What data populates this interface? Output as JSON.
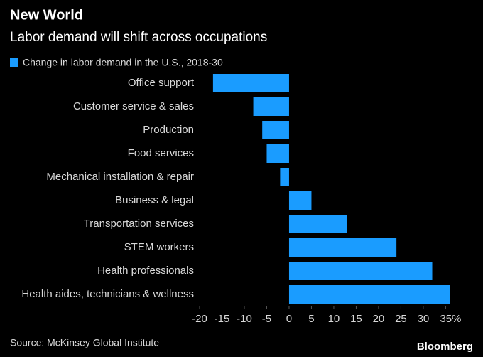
{
  "chart_data": {
    "type": "hbar",
    "title": "New World",
    "subtitle": "Labor demand will shift across occupations",
    "categories": [
      "Office support",
      "Customer service & sales",
      "Production",
      "Food services",
      "Mechanical installation & repair",
      "Business & legal",
      "Transportation services",
      "STEM workers",
      "Health professionals",
      "Health aides, technicians & wellness"
    ],
    "series": [
      {
        "name": "Change in labor demand in the U.S., 2018-30",
        "color": "#1a9cff",
        "values": [
          -17,
          -8,
          -6,
          -5,
          -2,
          5,
          13,
          24,
          32,
          36
        ]
      }
    ],
    "xlim": [
      -20,
      37
    ],
    "xticks": [
      -20,
      -15,
      -10,
      -5,
      0,
      5,
      10,
      15,
      20,
      25,
      30,
      {
        "value": 35,
        "label": "35%"
      }
    ],
    "source": "Source: McKinsey Global Institute",
    "brand": "Bloomberg"
  }
}
